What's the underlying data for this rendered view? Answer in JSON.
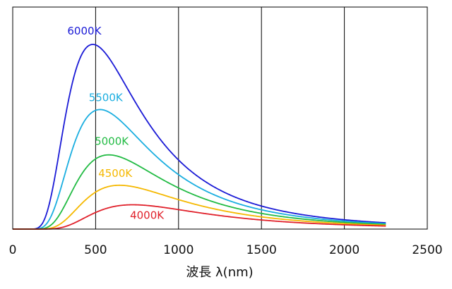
{
  "chart_data": {
    "type": "line",
    "title": "",
    "xlabel": "波長 λ(nm)",
    "ylabel": "",
    "xlim": [
      0,
      2500
    ],
    "x_ticks": [
      "0",
      "500",
      "1000",
      "1500",
      "2000",
      "2500"
    ],
    "x_tick_values": [
      0,
      500,
      1000,
      1500,
      2000,
      2500
    ],
    "grid": {
      "vertical": true,
      "horizontal": false
    },
    "legend": "inline-labels",
    "x_range_plotted": [
      0,
      2250
    ],
    "series": [
      {
        "name": "6000K",
        "temperature_K": 6000,
        "color": "#1a1ad6",
        "peak": {
          "x": 483,
          "y": 1.0
        }
      },
      {
        "name": "5500K",
        "temperature_K": 5500,
        "color": "#1aaee0",
        "peak": {
          "x": 527,
          "y": 0.65
        }
      },
      {
        "name": "5000K",
        "temperature_K": 5000,
        "color": "#22bb44",
        "peak": {
          "x": 580,
          "y": 0.41
        }
      },
      {
        "name": "4500K",
        "temperature_K": 4500,
        "color": "#f5b800",
        "peak": {
          "x": 644,
          "y": 0.24
        }
      },
      {
        "name": "4000K",
        "temperature_K": 4000,
        "color": "#e0202a",
        "peak": {
          "x": 725,
          "y": 0.13
        }
      }
    ],
    "ylim": [
      0,
      1.0
    ]
  }
}
